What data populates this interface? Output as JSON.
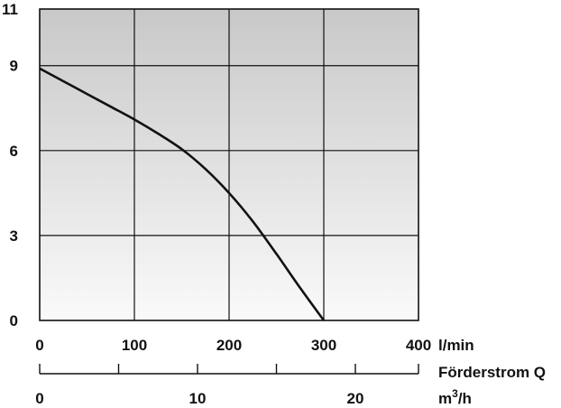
{
  "chart_data": {
    "type": "line",
    "y_ticks": [
      0,
      3,
      6,
      9,
      11
    ],
    "ylim": [
      0,
      11
    ],
    "x_ticks_lmin": [
      0,
      100,
      200,
      300,
      400
    ],
    "xlim_lmin": [
      0,
      400
    ],
    "x_unit_lmin": "l/min",
    "x_label": "Förderstrom Q",
    "x_ticks_m3h": [
      0,
      10,
      20
    ],
    "x_unit_m3h_base": "m",
    "x_unit_m3h_sup": "3",
    "x_unit_m3h_tail": "/h",
    "grid": true,
    "series": [
      {
        "x": [
          0,
          25,
          50,
          75,
          100,
          125,
          150,
          175,
          200,
          225,
          250,
          275,
          300
        ],
        "y": [
          8.9,
          8.45,
          8.0,
          7.55,
          7.1,
          6.6,
          6.05,
          5.35,
          4.5,
          3.5,
          2.35,
          1.15,
          0
        ]
      }
    ],
    "colors": {
      "line": "#111111",
      "band_top": "#c8c8c8",
      "band_bottom": "#fafafa"
    }
  }
}
